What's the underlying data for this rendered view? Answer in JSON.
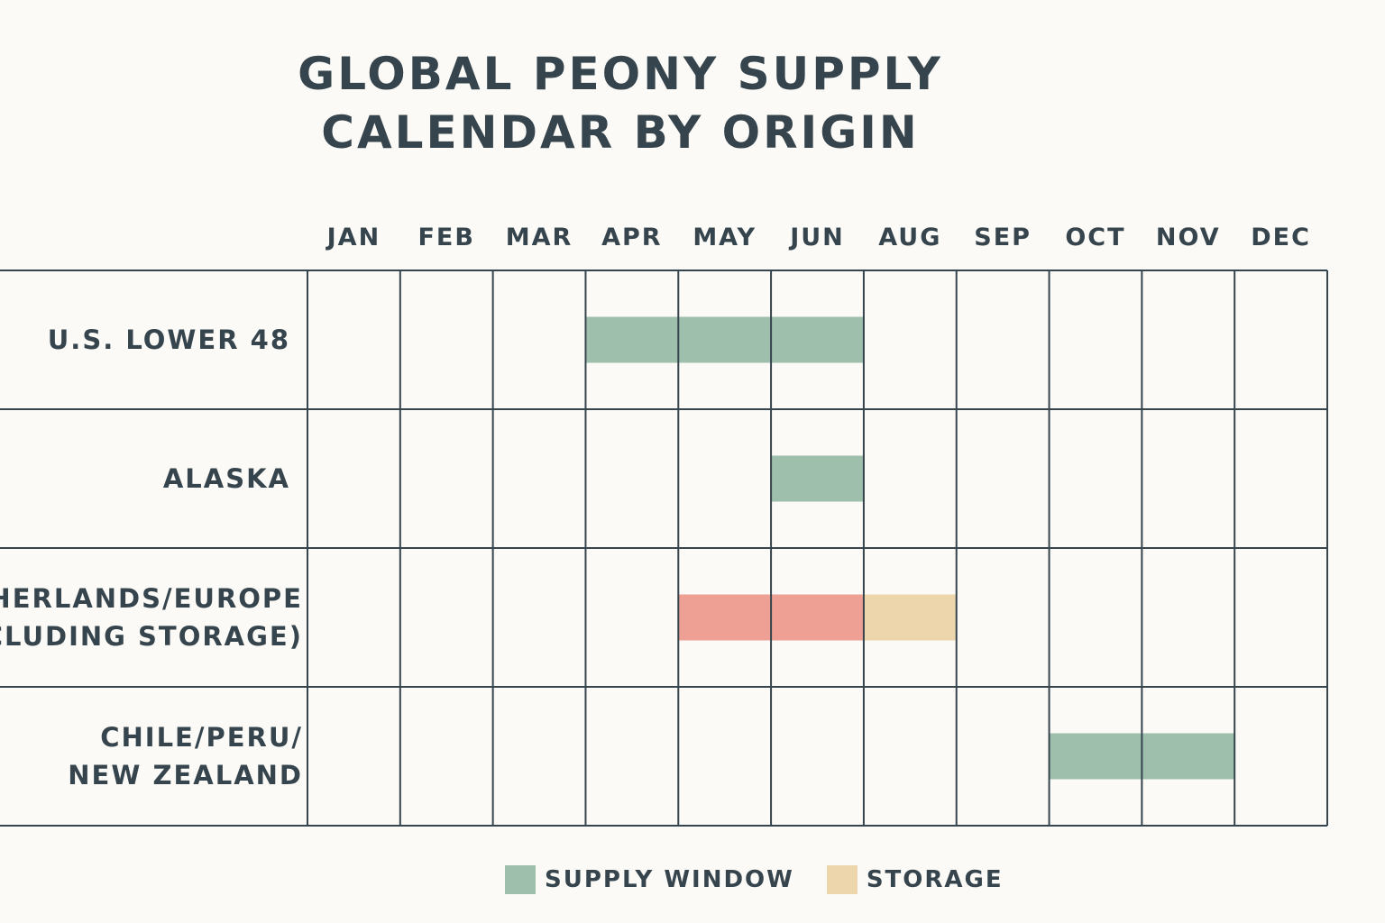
{
  "chart_data": {
    "type": "gantt",
    "title_lines": [
      "GLOBAL PEONY SUPPLY",
      "CALENDAR BY ORIGIN"
    ],
    "columns": [
      "JAN",
      "FEB",
      "MAR",
      "APR",
      "MAY",
      "JUN",
      "AUG",
      "SEP",
      "OCT",
      "NOV",
      "DEC"
    ],
    "rows": [
      {
        "label_lines": [
          "U.S. LOWER 48"
        ],
        "segments": [
          {
            "start_col": 3,
            "end_col": 5,
            "kind": "supply"
          }
        ]
      },
      {
        "label_lines": [
          "ALASKA"
        ],
        "segments": [
          {
            "start_col": 5,
            "end_col": 5,
            "kind": "supply"
          }
        ]
      },
      {
        "label_lines": [
          "NETHERLANDS/EUROPE",
          "(INCLUDING STORAGE)"
        ],
        "segments": [
          {
            "start_col": 4,
            "end_col": 5,
            "kind": "supply_europe"
          },
          {
            "start_col": 6,
            "end_col": 6,
            "kind": "storage"
          }
        ]
      },
      {
        "label_lines": [
          "CHILE/PERU/",
          "NEW ZEALAND"
        ],
        "segments": [
          {
            "start_col": 8,
            "end_col": 9,
            "kind": "supply"
          }
        ]
      }
    ],
    "legend": [
      {
        "label": "SUPPLY WINDOW",
        "color": "#9dbfac"
      },
      {
        "label": "STORAGE",
        "color": "#edd6ab"
      }
    ],
    "colors": {
      "supply": "#9dbfac",
      "supply_europe": "#eda093",
      "storage": "#edd6ab",
      "grid": "#36454d",
      "text": "#36454d",
      "background": "#fcfaf7"
    },
    "grid": true,
    "legend_position": "bottom"
  }
}
